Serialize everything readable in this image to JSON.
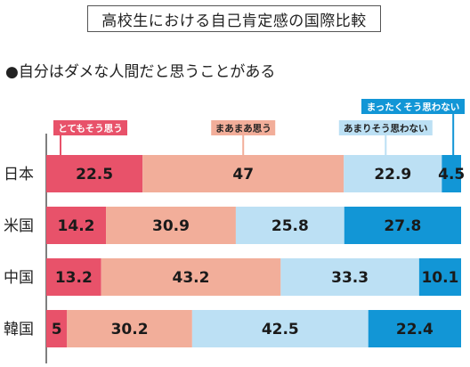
{
  "title": "高校生における自己肯定感の国際比較",
  "subtitle": "●自分はダメな人間だと思うことがある",
  "colors": {
    "s1": "#E8526A",
    "s2": "#F2AE9A",
    "s3": "#BCE0F4",
    "s4": "#1296D6"
  },
  "chart_data": {
    "type": "bar",
    "orientation": "horizontal",
    "stacked": true,
    "normalized": true,
    "categories": [
      "日本",
      "米国",
      "中国",
      "韓国"
    ],
    "series": [
      {
        "name": "とてもそう思う",
        "values": [
          22.5,
          14.2,
          13.2,
          5
        ]
      },
      {
        "name": "まあまあ思う",
        "values": [
          47,
          30.9,
          43.2,
          30.2
        ]
      },
      {
        "name": "あまりそう思わない",
        "values": [
          22.9,
          25.8,
          33.3,
          42.5
        ]
      },
      {
        "name": "まったくそう思わない",
        "values": [
          4.5,
          27.8,
          10.1,
          22.4
        ]
      }
    ],
    "legend_placement": "top, callouts above first bar",
    "grid": false
  }
}
